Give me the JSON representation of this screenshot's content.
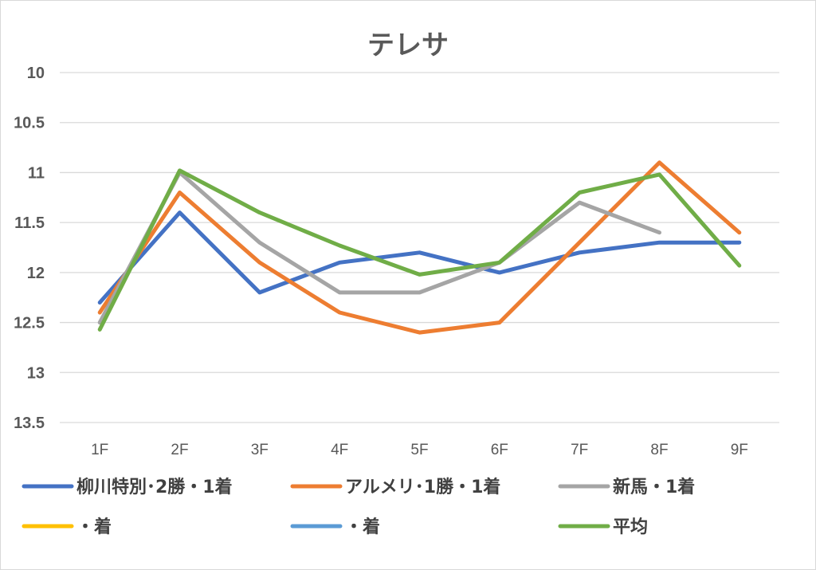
{
  "chart_data": {
    "type": "line",
    "title": "テレサ",
    "xlabel": "",
    "ylabel": "",
    "categories": [
      "1F",
      "2F",
      "3F",
      "4F",
      "5F",
      "6F",
      "7F",
      "8F",
      "9F"
    ],
    "y_ticks": [
      "10",
      "10.5",
      "11",
      "11.5",
      "12",
      "12.5",
      "13",
      "13.5"
    ],
    "ylim": [
      10,
      13.5
    ],
    "y_reversed": true,
    "grid": true,
    "legend_position": "bottom",
    "series": [
      {
        "name": "柳川特別･2勝・1着",
        "color": "#4472c4",
        "values": [
          12.3,
          11.4,
          12.2,
          11.9,
          11.8,
          12.0,
          11.8,
          11.7,
          11.7
        ]
      },
      {
        "name": "アルメリ･1勝・1着",
        "color": "#ed7d31",
        "values": [
          12.4,
          11.2,
          11.9,
          12.4,
          12.6,
          12.5,
          11.7,
          10.9,
          11.6
        ]
      },
      {
        "name": "新馬・1着",
        "color": "#a5a5a5",
        "values": [
          12.5,
          11.0,
          11.7,
          12.2,
          12.2,
          11.9,
          11.3,
          11.6,
          null
        ]
      },
      {
        "name": "・着",
        "color": "#ffc000",
        "values": [
          null,
          null,
          null,
          null,
          null,
          null,
          null,
          null,
          null
        ]
      },
      {
        "name": "・着",
        "color": "#5b9bd5",
        "values": [
          null,
          null,
          null,
          null,
          null,
          null,
          null,
          null,
          null
        ]
      },
      {
        "name": "平均",
        "color": "#70ad47",
        "values": [
          12.57,
          10.98,
          11.4,
          11.73,
          12.02,
          11.9,
          11.2,
          11.02,
          11.93
        ]
      }
    ]
  }
}
